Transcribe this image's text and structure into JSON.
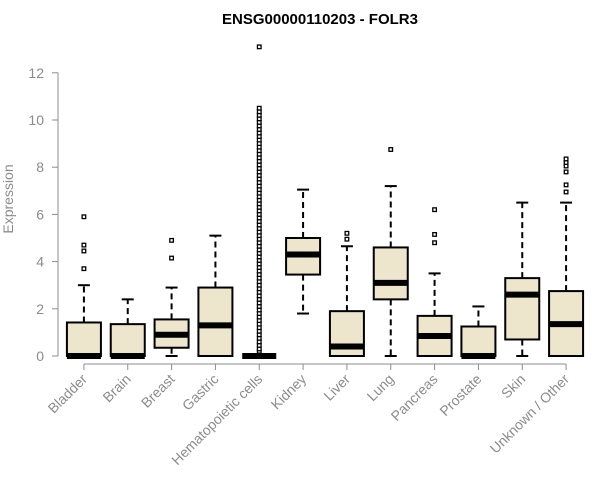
{
  "chart_data": {
    "type": "boxplot",
    "title": "ENSG00000110203 - FOLR3",
    "ylabel": "Expression",
    "xlabel": "",
    "ylim": [
      0,
      12
    ],
    "yticks": [
      0,
      2,
      4,
      6,
      8,
      10,
      12
    ],
    "grid": false,
    "box_fill": "#ede6cd",
    "box_stroke": "#000000",
    "axis_color": "#8c8c8c",
    "categories": [
      "Bladder",
      "Brain",
      "Breast",
      "Gastric",
      "Hematopoietic cells",
      "Kidney",
      "Liver",
      "Lung",
      "Pancreas",
      "Prostate",
      "Skin",
      "Unknown / Other"
    ],
    "boxes": [
      {
        "whislo": 0,
        "q1": 0,
        "med": 0,
        "q3": 1.42,
        "whishi": 3.0,
        "fliers": [
          3.7,
          4.45,
          4.7,
          5.9
        ]
      },
      {
        "whislo": 0,
        "q1": 0,
        "med": 0,
        "q3": 1.35,
        "whishi": 2.4,
        "fliers": []
      },
      {
        "whislo": 0,
        "q1": 0.35,
        "med": 0.9,
        "q3": 1.55,
        "whishi": 2.9,
        "fliers": [
          4.15,
          4.9
        ]
      },
      {
        "whislo": 0,
        "q1": 0,
        "med": 1.3,
        "q3": 2.9,
        "whishi": 5.1,
        "fliers": []
      },
      {
        "whislo": 0,
        "q1": 0,
        "med": 0,
        "q3": 0,
        "whishi": 0,
        "fliers": [
          0.2,
          0.3,
          0.45,
          0.6,
          0.75,
          0.9,
          1.05,
          1.2,
          1.35,
          1.5,
          1.65,
          1.8,
          1.95,
          2.1,
          2.25,
          2.4,
          2.55,
          2.7,
          2.85,
          3.0,
          3.15,
          3.3,
          3.45,
          3.6,
          3.75,
          3.9,
          4.05,
          4.2,
          4.35,
          4.5,
          4.65,
          4.8,
          4.95,
          5.1,
          5.25,
          5.4,
          5.55,
          5.7,
          5.85,
          6.0,
          6.15,
          6.3,
          6.45,
          6.6,
          6.75,
          6.9,
          7.05,
          7.2,
          7.35,
          7.5,
          7.65,
          7.8,
          7.95,
          8.1,
          8.25,
          8.4,
          8.55,
          8.7,
          8.85,
          9.0,
          9.15,
          9.3,
          9.45,
          9.6,
          9.75,
          9.9,
          10.05,
          10.2,
          10.35,
          10.5,
          13.1
        ]
      },
      {
        "whislo": 1.8,
        "q1": 3.45,
        "med": 4.3,
        "q3": 5.0,
        "whishi": 7.05,
        "fliers": []
      },
      {
        "whislo": 0,
        "q1": 0,
        "med": 0.4,
        "q3": 1.9,
        "whishi": 4.65,
        "fliers": [
          4.95,
          5.2
        ]
      },
      {
        "whislo": 0,
        "q1": 2.4,
        "med": 3.1,
        "q3": 4.6,
        "whishi": 7.2,
        "fliers": [
          8.75
        ]
      },
      {
        "whislo": 0,
        "q1": 0,
        "med": 0.85,
        "q3": 1.7,
        "whishi": 3.5,
        "fliers": [
          4.8,
          5.15,
          6.2
        ]
      },
      {
        "whislo": 0,
        "q1": 0,
        "med": 0,
        "q3": 1.25,
        "whishi": 2.1,
        "fliers": []
      },
      {
        "whislo": 0,
        "q1": 0.7,
        "med": 2.6,
        "q3": 3.3,
        "whishi": 6.5,
        "fliers": []
      },
      {
        "whislo": 0,
        "q1": 0,
        "med": 1.35,
        "q3": 2.75,
        "whishi": 6.5,
        "fliers": [
          6.95,
          7.25,
          7.8,
          8.05,
          8.2,
          8.35
        ]
      }
    ]
  }
}
